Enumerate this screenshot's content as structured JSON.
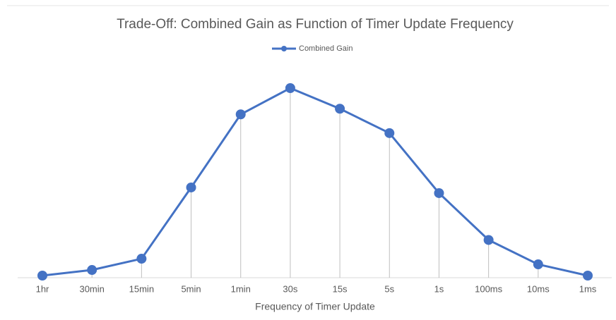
{
  "chart_data": {
    "type": "line",
    "title": "Trade-Off: Combined Gain as Function of Timer Update Frequency",
    "x_label": "Frequency of Timer Update",
    "categories": [
      "1hr",
      "30min",
      "15min",
      "5min",
      "1min",
      "30s",
      "15s",
      "5s",
      "1s",
      "100ms",
      "10ms",
      "1ms"
    ],
    "series": [
      {
        "name": "Combined Gain",
        "color": "#4472c4",
        "values": [
          0,
          3,
          9,
          47,
          86,
          100,
          89,
          76,
          44,
          19,
          6,
          0
        ]
      }
    ],
    "ylim": [
      0,
      100
    ],
    "drop_lines": true
  }
}
